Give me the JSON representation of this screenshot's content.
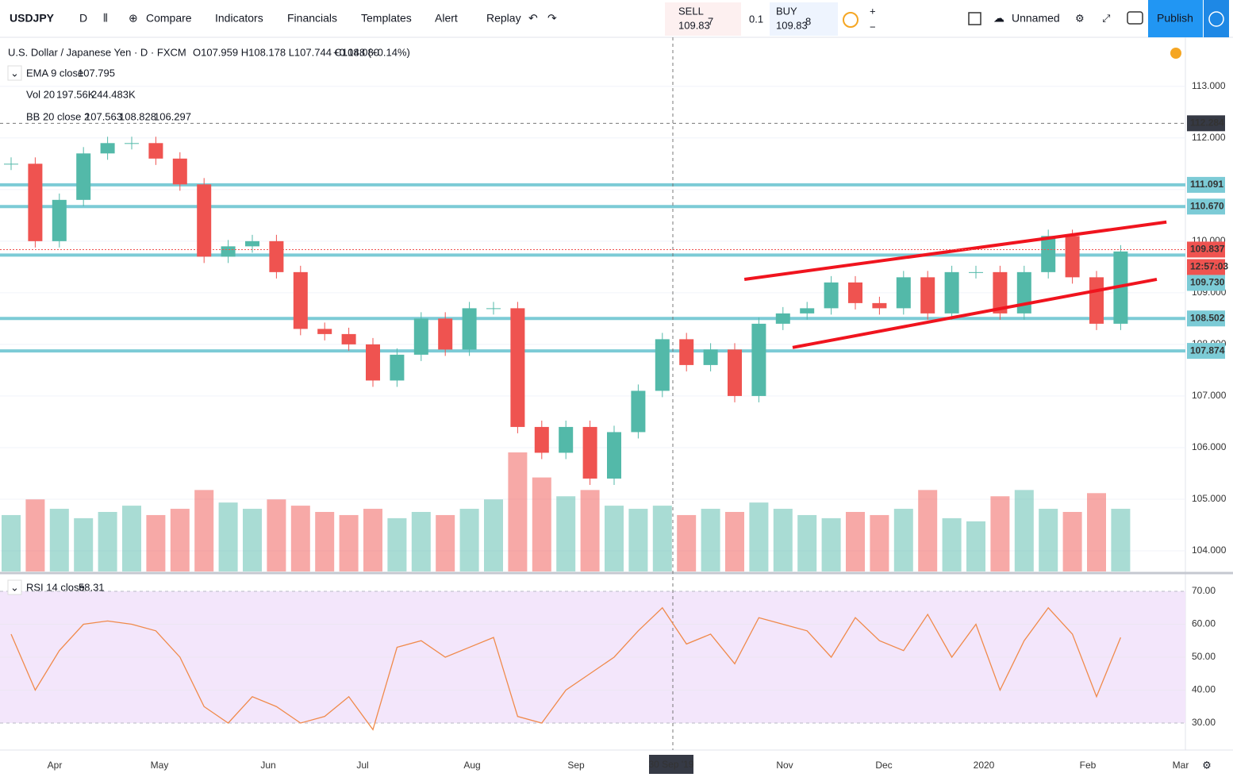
{
  "toolbar": {
    "symbol": "USDJPY",
    "interval": "D",
    "items": [
      "Compare",
      "Indicators",
      "Financials",
      "Templates",
      "Alert",
      "Replay"
    ],
    "sell": {
      "label": "SELL",
      "price": "109.83",
      "pip": "7"
    },
    "spread": "0.1",
    "buy": {
      "label": "BUY",
      "price": "109.83",
      "pip": "8"
    },
    "layout": "Unnamed",
    "publish": "Publish"
  },
  "legend": {
    "title": "U.S. Dollar / Japanese Yen · D · FXCM",
    "ohlc": "O107.959 H108.178 L107.744 C108.080",
    "change": "+0.148 (+0.14%)",
    "ema": {
      "name": "EMA 9 close",
      "value": "107.795"
    },
    "vol": {
      "name": "Vol 20",
      "v1": "197.56K",
      "v2": "244.483K"
    },
    "bb": {
      "name": "BB 20 close 2",
      "v1": "107.563",
      "v2": "108.828",
      "v3": "106.297"
    }
  },
  "chart_data": [
    {
      "type": "candlestick",
      "ylim": [
        103.6,
        113.95
      ],
      "yticks": [
        {
          "value": 113,
          "label": "113.000"
        },
        {
          "value": 112,
          "label": "112.000"
        },
        {
          "value": 111,
          "label": "111.000"
        },
        {
          "value": 110,
          "label": "110.000"
        },
        {
          "value": 109,
          "label": "109.000"
        },
        {
          "value": 108,
          "label": "108.000"
        },
        {
          "value": 107,
          "label": "107.000"
        },
        {
          "value": 106,
          "label": "106.000"
        },
        {
          "value": 105,
          "label": "105.000"
        },
        {
          "value": 104,
          "label": "104.000"
        }
      ],
      "closes": [
        111.5,
        110.0,
        110.8,
        111.7,
        111.9,
        111.9,
        111.6,
        111.1,
        109.7,
        109.9,
        110.0,
        109.4,
        108.3,
        108.2,
        108.0,
        107.3,
        107.8,
        108.5,
        107.9,
        108.7,
        108.7,
        106.4,
        105.9,
        106.4,
        105.4,
        106.3,
        107.1,
        108.1,
        107.6,
        107.9,
        107.0,
        108.4,
        108.6,
        108.7,
        109.2,
        108.8,
        108.7,
        109.3,
        108.6,
        109.4,
        109.4,
        108.6,
        109.4,
        110.1,
        109.3,
        108.4,
        109.8
      ],
      "volumes": [
        180,
        230,
        200,
        170,
        190,
        210,
        180,
        200,
        260,
        220,
        200,
        230,
        210,
        190,
        180,
        200,
        170,
        190,
        180,
        200,
        230,
        380,
        300,
        240,
        260,
        210,
        200,
        210,
        180,
        200,
        190,
        220,
        200,
        180,
        170,
        190,
        180,
        200,
        260,
        170,
        160,
        240,
        260,
        200,
        190,
        250,
        200
      ],
      "up_color": "#53b9a9",
      "down_color": "#ef5350",
      "levels": [
        {
          "value": 111.091,
          "label": "111.091"
        },
        {
          "value": 110.67,
          "label": "110.670"
        },
        {
          "value": 109.73,
          "label": "109.730"
        },
        {
          "value": 108.502,
          "label": "108.502"
        },
        {
          "value": 107.874,
          "label": "107.874"
        }
      ],
      "level_color": "#7ccbd6",
      "last_price": {
        "value": 109.837,
        "label": "109.837"
      },
      "countdown": "12:57:03",
      "crosshair": {
        "value": 112.284,
        "label": "112.284"
      },
      "channels": [
        {
          "x": [
            30.4,
            47.9
          ],
          "y": [
            109.26,
            110.37
          ]
        },
        {
          "x": [
            32.4,
            47.5
          ],
          "y": [
            107.94,
            109.26
          ]
        }
      ],
      "channel_color": "#f0141e"
    },
    {
      "type": "line",
      "name": "RSI 14 close",
      "last": "58.31",
      "color": "#f08a4b",
      "ylim": [
        21.8,
        74.1
      ],
      "yticks": [
        {
          "value": 70,
          "label": "70.00"
        },
        {
          "value": 60,
          "label": "60.00"
        },
        {
          "value": 50,
          "label": "50.00"
        },
        {
          "value": 40,
          "label": "40.00"
        },
        {
          "value": 30,
          "label": "30.00"
        }
      ],
      "values": [
        57,
        40,
        52,
        60,
        61,
        60,
        58,
        50,
        35,
        30,
        38,
        35,
        30,
        32,
        38,
        28,
        53,
        55,
        50,
        53,
        56,
        32,
        30,
        40,
        45,
        50,
        58,
        65,
        54,
        57,
        48,
        62,
        60,
        58,
        50,
        62,
        55,
        52,
        63,
        50,
        60,
        40,
        55,
        65,
        57,
        38,
        56
      ]
    }
  ],
  "time_axis": [
    "Apr",
    "May",
    "Jun",
    "Jul",
    "Aug",
    "Sep",
    "30 Sep '19",
    "Nov",
    "Dec",
    "2020",
    "Feb",
    "Mar"
  ]
}
